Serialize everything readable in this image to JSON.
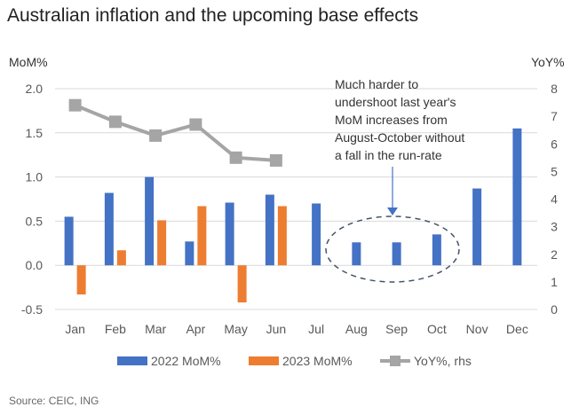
{
  "chart_data": {
    "type": "bar",
    "title": "Australian inflation and the upcoming base effects",
    "ylabel": "MoM%",
    "y2label": "YoY%",
    "ylim": [
      -0.5,
      2.0
    ],
    "y2lim": [
      0,
      8
    ],
    "yticks": [
      "2.0",
      "1.5",
      "1.0",
      "0.5",
      "0.0",
      "-0.5"
    ],
    "y2ticks": [
      "8",
      "7",
      "6",
      "5",
      "4",
      "3",
      "2",
      "1",
      "0"
    ],
    "grid": true,
    "legend": "bottom",
    "categories": [
      "Jan",
      "Feb",
      "Mar",
      "Apr",
      "May",
      "Jun",
      "Jul",
      "Aug",
      "Sep",
      "Oct",
      "Nov",
      "Dec"
    ],
    "series": [
      {
        "name": "2022 MoM%",
        "type": "bar",
        "axis": "left",
        "color": "#4472c4",
        "values": [
          0.55,
          0.82,
          1.0,
          0.27,
          0.71,
          0.8,
          0.7,
          0.26,
          0.26,
          0.35,
          0.87,
          1.55
        ]
      },
      {
        "name": "2023 MoM%",
        "type": "bar",
        "axis": "left",
        "color": "#ed7d31",
        "values": [
          -0.33,
          0.17,
          0.51,
          0.67,
          -0.42,
          0.67,
          null,
          null,
          null,
          null,
          null,
          null
        ]
      },
      {
        "name": "YoY%, rhs",
        "type": "line",
        "axis": "right",
        "color": "#a5a5a5",
        "values": [
          7.4,
          6.8,
          6.3,
          6.7,
          5.5,
          5.4,
          null,
          null,
          null,
          null,
          null,
          null
        ]
      }
    ],
    "annotation": [
      "Much harder to",
      "undershoot last year's",
      "MoM increases from",
      "August-October without",
      "a fall in the run-rate"
    ]
  },
  "source": "Source: CEIC, ING"
}
